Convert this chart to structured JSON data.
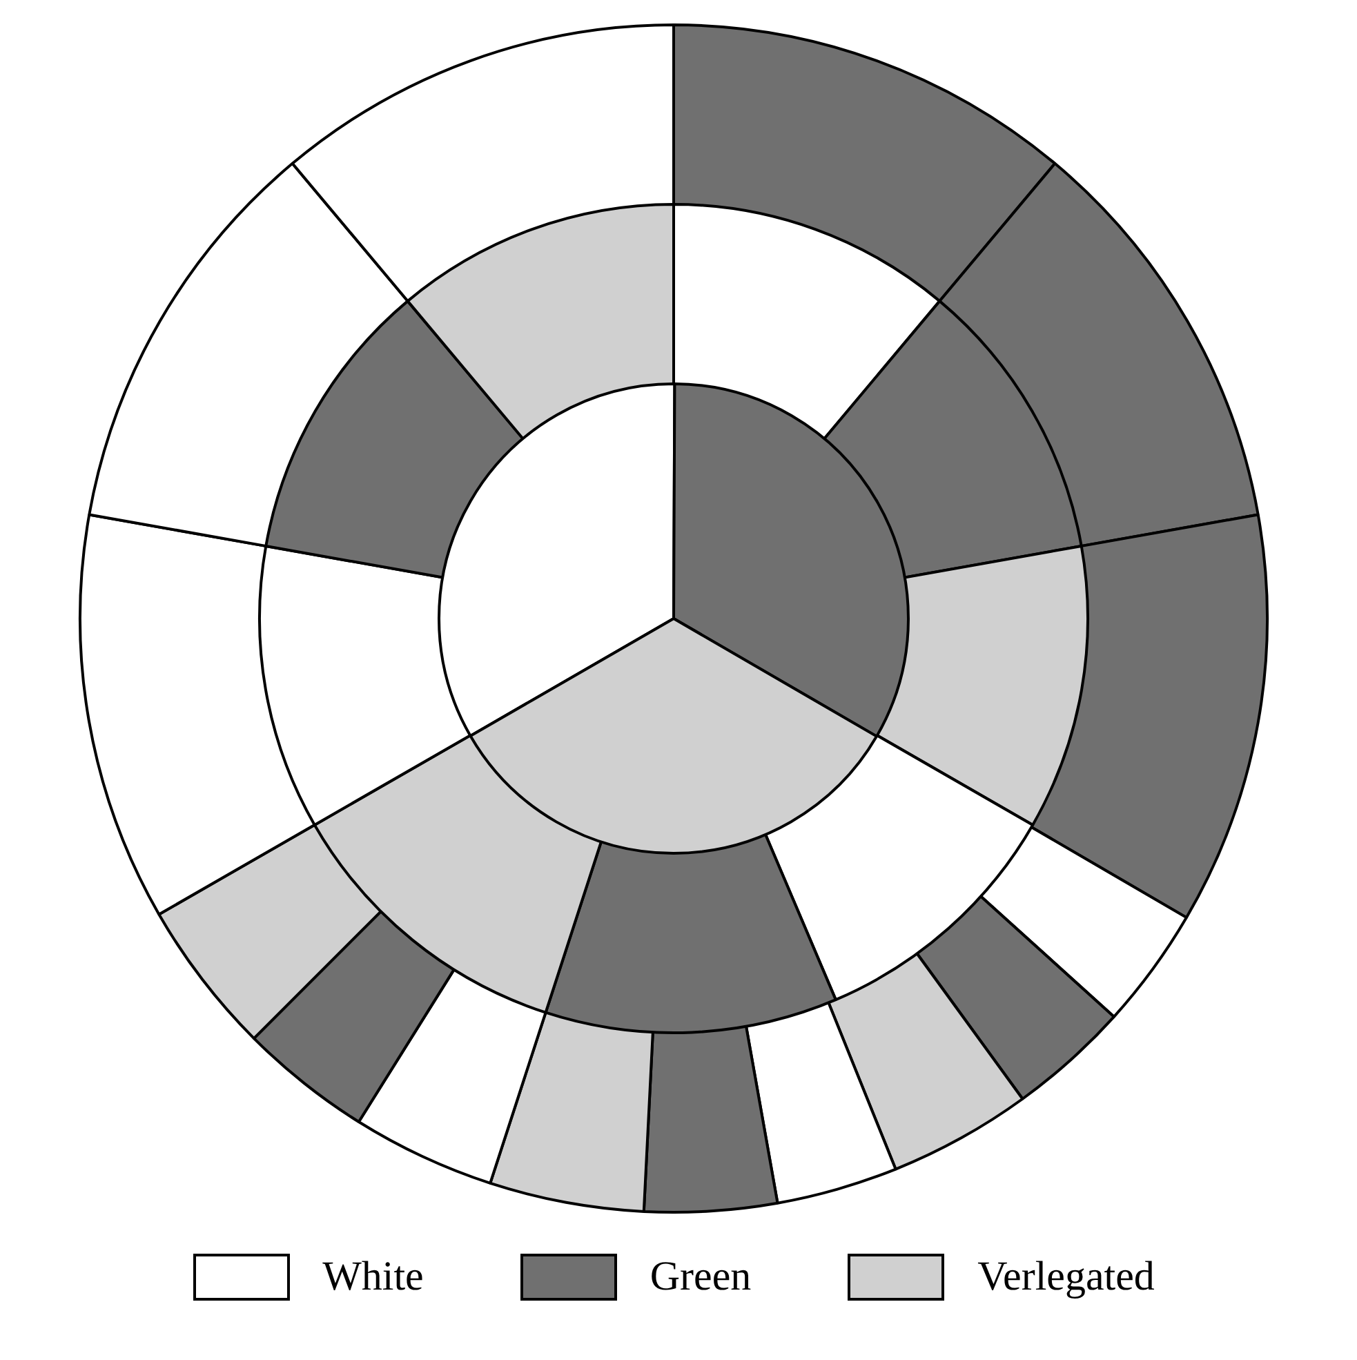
{
  "chart_data": [
    {
      "type": "pie",
      "categories": [
        "White",
        "Green",
        "Verlegated"
      ],
      "values": [
        33.4,
        33.3,
        33.3
      ],
      "colors": [
        "#ffffff",
        "#707070",
        "#d0d0d0"
      ],
      "legend": "bottom"
    },
    {
      "type": "donut",
      "categories": [
        null,
        null,
        null,
        null,
        null,
        null,
        null,
        null,
        null
      ],
      "values": [
        11.1,
        11.1,
        11.1,
        10.3,
        11.4,
        11.7,
        11.1,
        11.1,
        11.1
      ],
      "colors": [
        "#ffffff",
        "#707070",
        "#d0d0d0",
        "#ffffff",
        "#707070",
        "#d0d0d0",
        "#ffffff",
        "#707070",
        "#d0d0d0"
      ]
    },
    {
      "type": "donut",
      "categories": [
        null,
        null,
        null,
        null,
        null,
        null,
        null,
        null,
        null,
        null,
        null,
        null,
        null,
        null,
        null
      ],
      "values": [
        11.1,
        11.1,
        11.2,
        3.3,
        3.3,
        3.9,
        3.3,
        3.6,
        4.2,
        3.9,
        3.6,
        4.2,
        11.1,
        11.1,
        11.1
      ],
      "colors": [
        "#707070",
        "#707070",
        "#707070",
        "#ffffff",
        "#707070",
        "#d0d0d0",
        "#ffffff",
        "#707070",
        "#d0d0d0",
        "#ffffff",
        "#707070",
        "#d0d0d0",
        "#ffffff",
        "#ffffff",
        "#ffffff"
      ]
    }
  ]
}
